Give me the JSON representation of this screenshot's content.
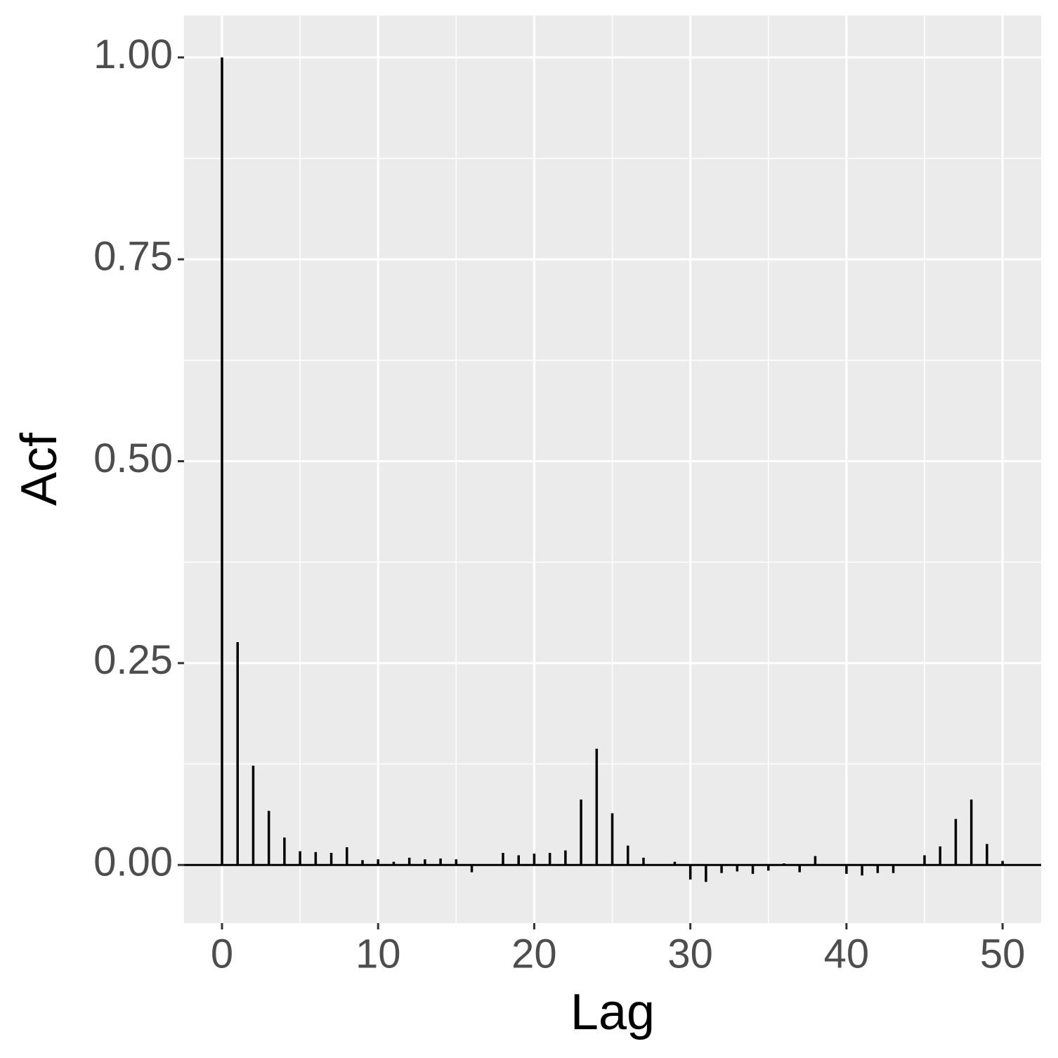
{
  "chart_data": {
    "type": "acf",
    "xlabel": "Lag",
    "ylabel": "Acf",
    "x": [
      0,
      1,
      2,
      3,
      4,
      5,
      6,
      7,
      8,
      9,
      10,
      11,
      12,
      13,
      14,
      15,
      16,
      17,
      18,
      19,
      20,
      21,
      22,
      23,
      24,
      25,
      26,
      27,
      28,
      29,
      30,
      31,
      32,
      33,
      34,
      35,
      36,
      37,
      38,
      39,
      40,
      41,
      42,
      43,
      44,
      45,
      46,
      47,
      48,
      49,
      50
    ],
    "values": [
      1.0,
      0.276,
      0.123,
      0.067,
      0.034,
      0.017,
      0.016,
      0.015,
      0.022,
      0.006,
      0.007,
      0.004,
      0.009,
      0.007,
      0.008,
      0.007,
      -0.009,
      0.001,
      0.015,
      0.012,
      0.014,
      0.015,
      0.018,
      0.081,
      0.144,
      0.064,
      0.024,
      0.009,
      0.001,
      0.004,
      -0.018,
      -0.021,
      -0.01,
      -0.008,
      -0.011,
      -0.007,
      0.002,
      -0.009,
      0.011,
      0.0,
      -0.011,
      -0.013,
      -0.01,
      -0.01,
      0.001,
      0.012,
      0.023,
      0.057,
      0.081,
      0.026,
      0.005
    ],
    "color": "#000000",
    "xlim": [
      -2.43,
      52.47
    ],
    "ylim": [
      -0.072,
      1.052
    ],
    "xticks": [
      0,
      10,
      20,
      30,
      40,
      50
    ],
    "yticks": [
      {
        "value": 0,
        "label": "0.00"
      },
      {
        "value": 0.25,
        "label": "0.25"
      },
      {
        "value": 0.5,
        "label": "0.50"
      },
      {
        "value": 0.75,
        "label": "0.75"
      },
      {
        "value": 1,
        "label": "1.00"
      }
    ],
    "grid": true
  }
}
